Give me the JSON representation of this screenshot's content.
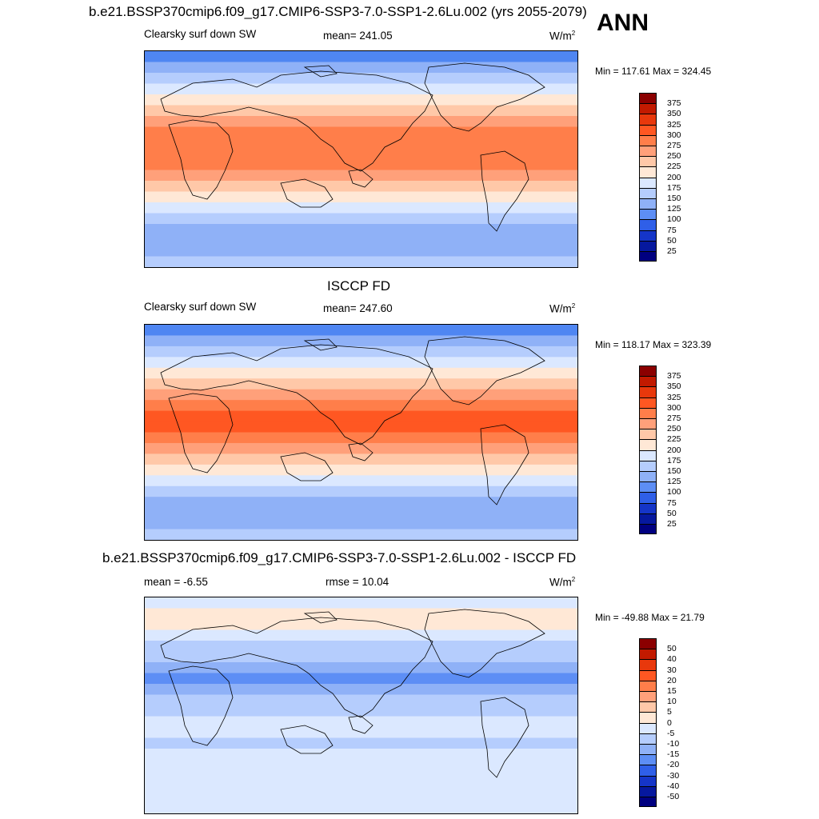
{
  "figure": {
    "season": "ANN"
  },
  "panels": [
    {
      "title": "b.e21.BSSP370cmip6.f09_g17.CMIP6-SSP3-7.0-SSP1-2.6Lu.002 (yrs 2055-2079)",
      "left_label": "Clearsky surf down SW",
      "center_label": "mean= 241.05",
      "units": "W/m",
      "units_sup": "2",
      "minmax": "Min = 117.61 Max = 324.45",
      "colorbar_labels": [
        "375",
        "350",
        "325",
        "300",
        "275",
        "250",
        "225",
        "200",
        "175",
        "150",
        "125",
        "100",
        "75",
        "50",
        "25"
      ],
      "colorbar_colors": [
        "#8b0000",
        "#c21a00",
        "#e8380c",
        "#ff5722",
        "#ff7e4a",
        "#ffa07a",
        "#ffc8a8",
        "#ffe8d6",
        "#dbe8ff",
        "#b5cdfd",
        "#8fb1f7",
        "#5d8ef5",
        "#2f5fe8",
        "#1535c8",
        "#06189e",
        "#000080"
      ],
      "map_bands": [
        "#4f86f2",
        "#8fb1f7",
        "#b5cdfd",
        "#dbe8ff",
        "#ffe8d6",
        "#ffc8a8",
        "#ffa07a",
        "#ff7e4a",
        "#ff7e4a",
        "#ff7e4a",
        "#ff7e4a",
        "#ffa07a",
        "#ffc8a8",
        "#ffe8d6",
        "#dbe8ff",
        "#b5cdfd",
        "#8fb1f7",
        "#8fb1f7",
        "#8fb1f7",
        "#b5cdfd"
      ]
    },
    {
      "title": "ISCCP FD",
      "left_label": "Clearsky surf down SW",
      "center_label": "mean= 247.60",
      "units": "W/m",
      "units_sup": "2",
      "minmax": "Min = 118.17 Max = 323.39",
      "colorbar_labels": [
        "375",
        "350",
        "325",
        "300",
        "275",
        "250",
        "225",
        "200",
        "175",
        "150",
        "125",
        "100",
        "75",
        "50",
        "25"
      ],
      "colorbar_colors": [
        "#8b0000",
        "#c21a00",
        "#e8380c",
        "#ff5722",
        "#ff7e4a",
        "#ffa07a",
        "#ffc8a8",
        "#ffe8d6",
        "#dbe8ff",
        "#b5cdfd",
        "#8fb1f7",
        "#5d8ef5",
        "#2f5fe8",
        "#1535c8",
        "#06189e",
        "#000080"
      ],
      "map_bands": [
        "#4f86f2",
        "#8fb1f7",
        "#b5cdfd",
        "#dbe8ff",
        "#ffe8d6",
        "#ffc8a8",
        "#ffa07a",
        "#ff7e4a",
        "#ff5722",
        "#ff5722",
        "#ff7e4a",
        "#ffa07a",
        "#ffc8a8",
        "#ffe8d6",
        "#dbe8ff",
        "#b5cdfd",
        "#8fb1f7",
        "#8fb1f7",
        "#8fb1f7",
        "#b5cdfd"
      ]
    },
    {
      "title": "b.e21.BSSP370cmip6.f09_g17.CMIP6-SSP3-7.0-SSP1-2.6Lu.002 - ISCCP FD",
      "left_label": "mean =  -6.55",
      "center_label": "rmse =  10.04",
      "units": "W/m",
      "units_sup": "2",
      "minmax": "Min = -49.88 Max =  21.79",
      "colorbar_labels": [
        "50",
        "40",
        "30",
        "20",
        "15",
        "10",
        "5",
        "0",
        "-5",
        "-10",
        "-15",
        "-20",
        "-30",
        "-40",
        "-50"
      ],
      "colorbar_colors": [
        "#8b0000",
        "#c21a00",
        "#e8380c",
        "#ff5722",
        "#ff7e4a",
        "#ffa07a",
        "#ffc8a8",
        "#ffe8d6",
        "#dbe8ff",
        "#b5cdfd",
        "#8fb1f7",
        "#5d8ef5",
        "#2f5fe8",
        "#1535c8",
        "#06189e",
        "#000080"
      ],
      "map_bands": [
        "#dbe8ff",
        "#ffe8d6",
        "#ffe8d6",
        "#dbe8ff",
        "#b5cdfd",
        "#b5cdfd",
        "#8fb1f7",
        "#5d8ef5",
        "#8fb1f7",
        "#b5cdfd",
        "#b5cdfd",
        "#dbe8ff",
        "#dbe8ff",
        "#b5cdfd",
        "#dbe8ff",
        "#dbe8ff",
        "#dbe8ff",
        "#dbe8ff",
        "#dbe8ff",
        "#dbe8ff"
      ]
    }
  ],
  "chart_data": [
    {
      "type": "heatmap",
      "title": "b.e21.BSSP370cmip6.f09_g17.CMIP6-SSP3-7.0-SSP1-2.6Lu.002 (yrs 2055-2079)",
      "variable": "Clearsky surf down SW",
      "mean": 241.05,
      "min": 117.61,
      "max": 324.45,
      "units": "W/m2",
      "contour_levels": [
        25,
        50,
        75,
        100,
        125,
        150,
        175,
        200,
        225,
        250,
        275,
        300,
        325,
        350,
        375
      ]
    },
    {
      "type": "heatmap",
      "title": "ISCCP FD",
      "variable": "Clearsky surf down SW",
      "mean": 247.6,
      "min": 118.17,
      "max": 323.39,
      "units": "W/m2",
      "contour_levels": [
        25,
        50,
        75,
        100,
        125,
        150,
        175,
        200,
        225,
        250,
        275,
        300,
        325,
        350,
        375
      ]
    },
    {
      "type": "heatmap",
      "title": "b.e21.BSSP370cmip6.f09_g17.CMIP6-SSP3-7.0-SSP1-2.6Lu.002 - ISCCP FD",
      "mean": -6.55,
      "rmse": 10.04,
      "min": -49.88,
      "max": 21.79,
      "units": "W/m2",
      "contour_levels": [
        -50,
        -40,
        -30,
        -20,
        -15,
        -10,
        -5,
        0,
        5,
        10,
        15,
        20,
        30,
        40,
        50
      ]
    }
  ]
}
